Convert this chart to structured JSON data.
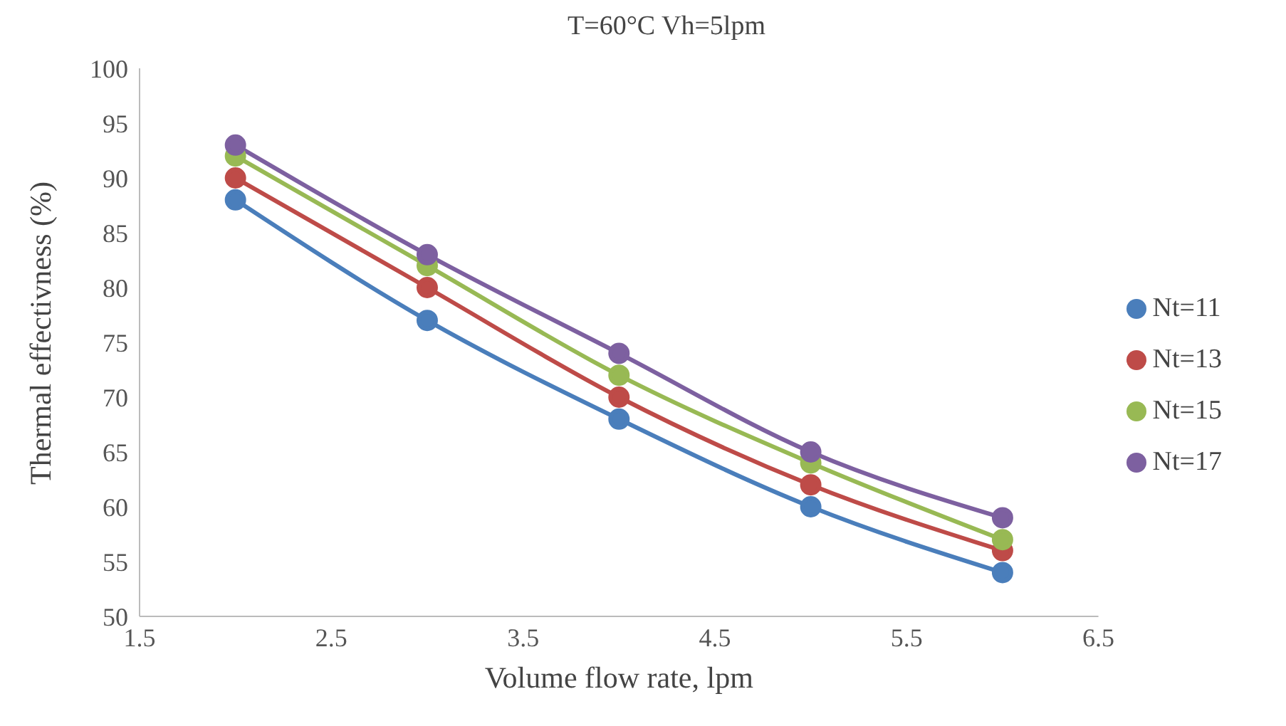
{
  "chart_data": {
    "type": "line",
    "title": "T=60°C   Vh=5lpm",
    "xlabel": "Volume flow rate, lpm",
    "ylabel": "Thermal effectivness (%)",
    "x": [
      2,
      3,
      4,
      5,
      6
    ],
    "series": [
      {
        "name": "Nt=11",
        "color": "#4a7ebb",
        "values": [
          88,
          77,
          68,
          60,
          54
        ]
      },
      {
        "name": "Nt=13",
        "color": "#be4b48",
        "values": [
          90,
          80,
          70,
          62,
          56
        ]
      },
      {
        "name": "Nt=15",
        "color": "#98b954",
        "values": [
          92,
          82,
          72,
          64,
          57
        ]
      },
      {
        "name": "Nt=17",
        "color": "#7d60a0",
        "values": [
          93,
          83,
          74,
          65,
          59
        ]
      }
    ],
    "xlim": [
      1.5,
      6.5
    ],
    "xticks": [
      1.5,
      2.5,
      3.5,
      4.5,
      5.5,
      6.5
    ],
    "ylim": [
      50,
      100
    ],
    "yticks": [
      50,
      55,
      60,
      65,
      70,
      75,
      80,
      85,
      90,
      95,
      100
    ],
    "grid": false,
    "legend": "right",
    "marker": "circle",
    "line_style": "solid"
  }
}
